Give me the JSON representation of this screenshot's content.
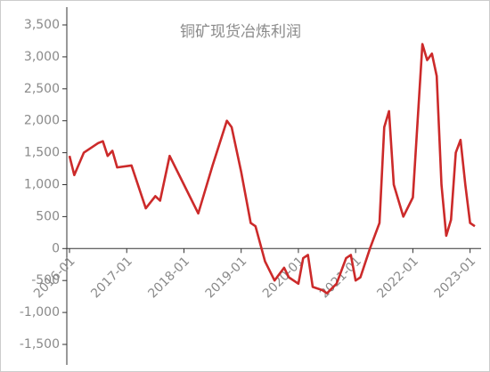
{
  "chart_data": {
    "type": "line",
    "title": "铜矿现货冶炼利润",
    "x": [
      "2016-01",
      "2016-02",
      "2016-04",
      "2016-07",
      "2016-08",
      "2016-09",
      "2016-10",
      "2016-11",
      "2017-02",
      "2017-05",
      "2017-07",
      "2017-08",
      "2017-10",
      "2018-01",
      "2018-04",
      "2018-07",
      "2018-10",
      "2018-11",
      "2019-01",
      "2019-03",
      "2019-04",
      "2019-06",
      "2019-08",
      "2019-09",
      "2019-10",
      "2019-11",
      "2020-01",
      "2020-02",
      "2020-03",
      "2020-04",
      "2020-06",
      "2020-07",
      "2020-09",
      "2020-11",
      "2020-12",
      "2021-01",
      "2021-02",
      "2021-04",
      "2021-06",
      "2021-07",
      "2021-08",
      "2021-09",
      "2021-11",
      "2022-01",
      "2022-02",
      "2022-03",
      "2022-04",
      "2022-05",
      "2022-06",
      "2022-07",
      "2022-08",
      "2022-09",
      "2022-10",
      "2022-11",
      "2022-12",
      "2023-01",
      "2023-02"
    ],
    "series": [
      {
        "color": "#cc2a2a",
        "values": [
          1450,
          1150,
          1500,
          1650,
          1680,
          1450,
          1530,
          1270,
          1300,
          630,
          820,
          750,
          1450,
          1000,
          550,
          1300,
          2000,
          1900,
          1200,
          400,
          350,
          -200,
          -500,
          -400,
          -300,
          -450,
          -550,
          -150,
          -100,
          -600,
          -650,
          -700,
          -550,
          -150,
          -100,
          -500,
          -450,
          0,
          400,
          1900,
          2150,
          1000,
          500,
          800,
          2000,
          3200,
          2950,
          3050,
          2700,
          1000,
          200,
          450,
          1500,
          1700,
          1000,
          400,
          350
        ]
      }
    ],
    "xlim": [
      "2016-01",
      "2023-02"
    ],
    "xticks": [
      "2016-01",
      "2017-01",
      "2018-01",
      "2019-01",
      "2020-01",
      "2021-01",
      "2022-01",
      "2023-01"
    ],
    "ylim": [
      -1500,
      3500
    ],
    "yticks": [
      {
        "value": -1500,
        "label": "-1,500"
      },
      {
        "value": -1000,
        "label": "-1,000"
      },
      -500,
      0,
      500,
      {
        "value": 1000,
        "label": "1,000"
      },
      {
        "value": 1500,
        "label": "1,500"
      },
      {
        "value": 2000,
        "label": "2,000"
      },
      {
        "value": 2500,
        "label": "2,500"
      },
      {
        "value": 3000,
        "label": "3,000"
      },
      {
        "value": 3500,
        "label": "3,500"
      }
    ]
  }
}
